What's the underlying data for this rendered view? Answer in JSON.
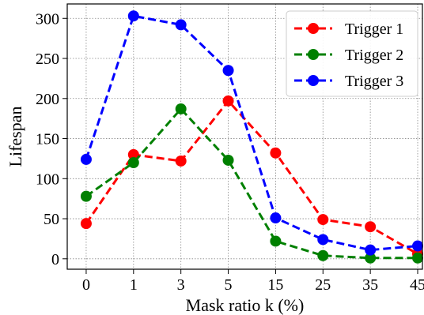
{
  "chart_data": {
    "type": "line",
    "categories": [
      "0",
      "1",
      "3",
      "5",
      "15",
      "25",
      "35",
      "45"
    ],
    "series": [
      {
        "name": "Trigger 1",
        "color": "#ff0000",
        "values": [
          44,
          130,
          122,
          197,
          132,
          49,
          40,
          6
        ]
      },
      {
        "name": "Trigger 2",
        "color": "#008000",
        "values": [
          78,
          120,
          187,
          123,
          22,
          4,
          1,
          1
        ]
      },
      {
        "name": "Trigger 3",
        "color": "#0000ff",
        "values": [
          124,
          303,
          292,
          235,
          51,
          24,
          11,
          16
        ]
      }
    ],
    "xlabel": "Mask ratio k (%)",
    "ylabel": "Lifespan",
    "ylim": [
      -13,
      318
    ],
    "yticks": [
      0,
      50,
      100,
      150,
      200,
      250,
      300
    ],
    "grid": true,
    "line_style": "dashed",
    "marker": "circle",
    "legend_position": "top-right"
  }
}
